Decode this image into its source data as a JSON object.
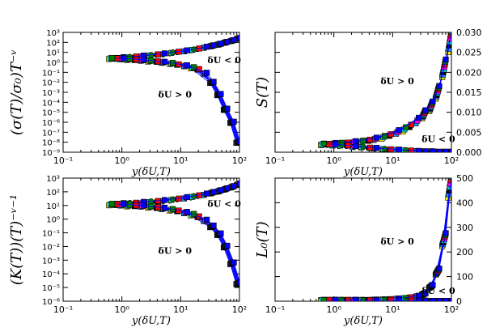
{
  "chart_data": [
    {
      "id": "a",
      "type": "scatter",
      "xscale": "log",
      "yscale": "log",
      "xlim": [
        0.1,
        100
      ],
      "ylim": [
        1e-09,
        1000
      ],
      "yaxis_side": "left",
      "ylabel": "(σ(T)/σ₀)T⁻ᵛ",
      "xlabel": "y(δU,T)",
      "xticks": [
        "10⁻¹",
        "10⁰",
        "10¹",
        "10²"
      ],
      "yticks": [
        "10⁻⁹",
        "10⁻⁸",
        "10⁻⁷",
        "10⁻⁶",
        "10⁻⁵",
        "10⁻⁴",
        "10⁻³",
        "10⁻²",
        "10⁻¹",
        "10⁰",
        "10¹",
        "10²",
        "10³"
      ],
      "annotations": [
        {
          "text": "δU < 0",
          "x": 55,
          "y": 0.8
        },
        {
          "text": "δU > 0",
          "x": 8,
          "y": 0.0003
        }
      ],
      "upper_series": {
        "name": "δU < 0",
        "x": [
          0.65,
          0.8,
          1,
          1.3,
          1.7,
          2.2,
          3,
          4,
          5,
          7,
          9,
          12,
          16,
          20,
          26,
          34,
          45,
          58,
          75,
          95
        ],
        "y": [
          2.5,
          2.6,
          2.9,
          3.2,
          3.6,
          4.2,
          5,
          6,
          7,
          9,
          11,
          14,
          18,
          23,
          32,
          45,
          65,
          100,
          150,
          250
        ]
      },
      "lower_series": {
        "name": "δU > 0",
        "x": [
          0.65,
          0.8,
          1,
          1.3,
          1.7,
          2.2,
          3,
          4,
          5,
          7,
          9,
          12,
          16,
          20,
          26,
          34,
          45,
          58,
          75,
          95
        ],
        "y": [
          2.5,
          2.4,
          2.2,
          2,
          1.8,
          1.6,
          1.4,
          1.2,
          1,
          0.8,
          0.6,
          0.45,
          0.3,
          0.2,
          0.08,
          0.01,
          0.0006,
          2e-05,
          1e-06,
          1e-08
        ]
      }
    },
    {
      "id": "b",
      "type": "scatter",
      "xscale": "log",
      "yscale": "linear",
      "xlim": [
        0.1,
        100
      ],
      "ylim": [
        0,
        0.03
      ],
      "yaxis_side": "right",
      "ylabel": "S(T)",
      "xlabel": "y(δU,T)",
      "xticks": [
        "10⁻¹",
        "10⁰",
        "10¹",
        "10²"
      ],
      "yticks": [
        "0.000",
        "0.005",
        "0.010",
        "0.015",
        "0.020",
        "0.025",
        "0.030"
      ],
      "annotations": [
        {
          "text": "δU > 0",
          "x": 12,
          "y": 0.017
        },
        {
          "text": "δU < 0",
          "x": 60,
          "y": 0.0025
        }
      ],
      "upper_series": {
        "name": "δU > 0",
        "x": [
          0.65,
          0.8,
          1,
          1.3,
          1.7,
          2.2,
          3,
          4,
          5,
          7,
          9,
          12,
          16,
          20,
          26,
          34,
          45,
          58,
          75,
          95
        ],
        "y": [
          0.002,
          0.002,
          0.0021,
          0.0022,
          0.0023,
          0.0025,
          0.0027,
          0.003,
          0.0033,
          0.0038,
          0.0043,
          0.005,
          0.0058,
          0.0066,
          0.0078,
          0.0095,
          0.0115,
          0.015,
          0.021,
          0.028
        ]
      },
      "lower_series": {
        "name": "δU < 0",
        "x": [
          0.65,
          0.8,
          1,
          1.3,
          1.7,
          2.2,
          3,
          4,
          5,
          7,
          9,
          12,
          16,
          20,
          26,
          34,
          45,
          58,
          75,
          95
        ],
        "y": [
          0.002,
          0.0019,
          0.0018,
          0.0017,
          0.0016,
          0.0014,
          0.0013,
          0.0011,
          0.001,
          0.0008,
          0.0007,
          0.0006,
          0.0005,
          0.0004,
          0.0003,
          0.0002,
          0.0002,
          0.0001,
          0.0001,
          0.0001
        ]
      }
    },
    {
      "id": "c",
      "type": "scatter",
      "xscale": "log",
      "yscale": "log",
      "xlim": [
        0.1,
        100
      ],
      "ylim": [
        1e-06,
        1000
      ],
      "yaxis_side": "left",
      "ylabel": "(K(T))(T)⁻ᵛ⁻¹",
      "xlabel": "y(δU,T)",
      "xticks": [
        "10⁻¹",
        "10⁰",
        "10¹",
        "10²"
      ],
      "yticks": [
        "10⁻⁶",
        "10⁻⁵",
        "10⁻⁴",
        "10⁻³",
        "10⁻²",
        "10⁻¹",
        "10⁰",
        "10¹",
        "10²",
        "10³"
      ],
      "annotations": [
        {
          "text": "δU < 0",
          "x": 55,
          "y": 8
        },
        {
          "text": "δU > 0",
          "x": 8,
          "y": 0.003
        }
      ],
      "upper_series": {
        "name": "δU < 0",
        "x": [
          0.65,
          0.8,
          1,
          1.3,
          1.7,
          2.2,
          3,
          4,
          5,
          7,
          9,
          12,
          16,
          20,
          26,
          34,
          45,
          58,
          75,
          95
        ],
        "y": [
          12,
          12.5,
          13,
          14,
          15,
          16,
          18,
          20,
          22,
          26,
          30,
          36,
          44,
          52,
          65,
          85,
          115,
          160,
          230,
          350
        ]
      },
      "lower_series": {
        "name": "δU > 0",
        "x": [
          0.65,
          0.8,
          1,
          1.3,
          1.7,
          2.2,
          3,
          4,
          5,
          7,
          9,
          12,
          16,
          20,
          26,
          34,
          45,
          58,
          75,
          95
        ],
        "y": [
          12,
          11.5,
          11,
          10,
          9.5,
          9,
          8,
          7,
          6,
          5,
          4,
          3,
          2.2,
          1.5,
          0.8,
          0.3,
          0.08,
          0.01,
          0.0006,
          2e-05
        ]
      }
    },
    {
      "id": "d",
      "type": "scatter",
      "xscale": "log",
      "yscale": "linear",
      "xlim": [
        0.1,
        100
      ],
      "ylim": [
        0,
        500
      ],
      "yaxis_side": "right",
      "ylabel": "L₀(T)",
      "xlabel": "y(δU,T)",
      "xticks": [
        "10⁻¹",
        "10⁰",
        "10¹",
        "10²"
      ],
      "yticks": [
        "0",
        "100",
        "200",
        "300",
        "400",
        "500"
      ],
      "annotations": [
        {
          "text": "δU > 0",
          "x": 12,
          "y": 230
        },
        {
          "text": "δU < 0",
          "x": 60,
          "y": 30
        }
      ],
      "upper_series": {
        "name": "δU > 0",
        "x": [
          0.65,
          0.8,
          1,
          1.3,
          1.7,
          2.2,
          3,
          4,
          5,
          7,
          9,
          12,
          16,
          20,
          26,
          34,
          45,
          58,
          75,
          95
        ],
        "y": [
          5,
          5,
          5,
          5,
          5,
          5,
          5,
          5,
          6,
          7,
          8,
          10,
          12,
          15,
          20,
          30,
          60,
          120,
          250,
          470
        ]
      },
      "lower_series": {
        "name": "δU < 0",
        "x": [
          0.65,
          0.8,
          1,
          1.3,
          1.7,
          2.2,
          3,
          4,
          5,
          7,
          9,
          12,
          16,
          20,
          26,
          34,
          45,
          58,
          75,
          95
        ],
        "y": [
          5,
          5,
          5,
          5,
          5,
          5,
          4,
          4,
          4,
          3,
          3,
          3,
          2,
          2,
          2,
          2,
          1,
          1,
          1,
          1
        ]
      }
    }
  ],
  "colors": [
    "#ffff00",
    "#1e90ff",
    "#000000",
    "#00ced1",
    "#ff00ff",
    "#ff0000",
    "#008000",
    "#0000ff"
  ],
  "line_color": "#0000ff"
}
